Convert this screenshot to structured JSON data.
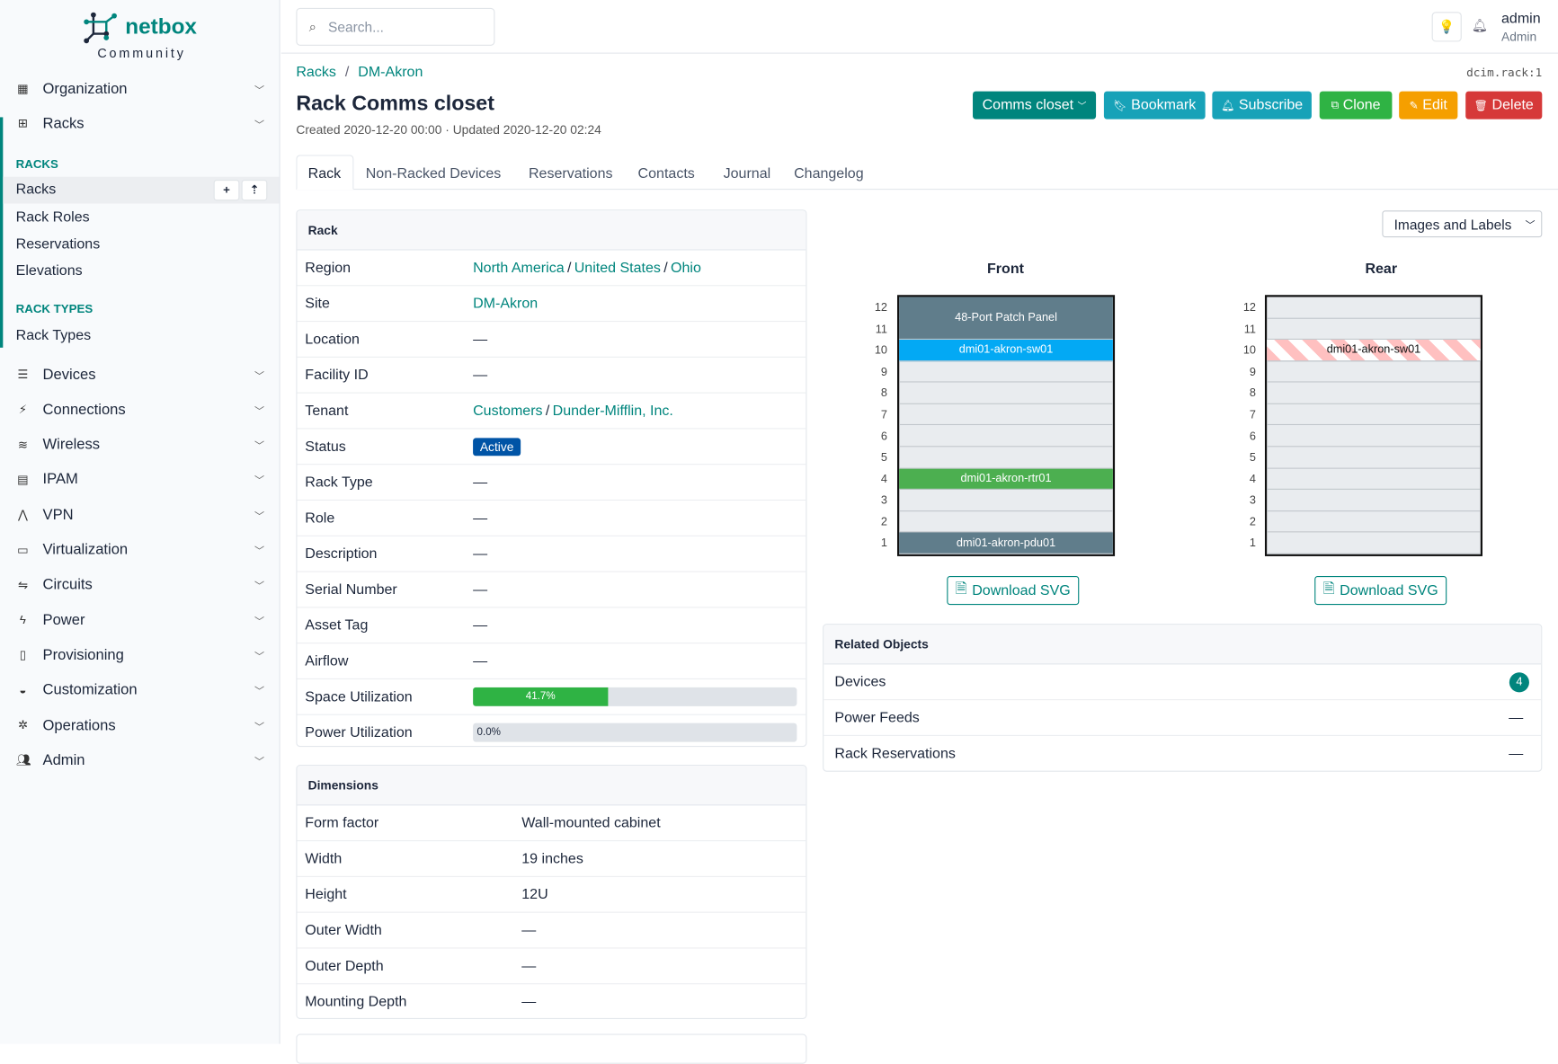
{
  "brand": {
    "name": "netbox",
    "edition": "Community",
    "color": "#00857d"
  },
  "sidebar": {
    "top_items": [
      {
        "label": "Organization",
        "icon": "building-icon"
      },
      {
        "label": "Racks",
        "icon": "rack-icon"
      }
    ],
    "racks_section": "RACKS",
    "racks_items": [
      "Racks",
      "Rack Roles",
      "Reservations",
      "Elevations"
    ],
    "rack_types_section": "RACK TYPES",
    "rack_types_items": [
      "Rack Types"
    ],
    "items": [
      {
        "label": "Devices",
        "icon": "server-icon"
      },
      {
        "label": "Connections",
        "icon": "plug-icon"
      },
      {
        "label": "Wireless",
        "icon": "wifi-icon"
      },
      {
        "label": "IPAM",
        "icon": "ipam-icon"
      },
      {
        "label": "VPN",
        "icon": "vpn-icon"
      },
      {
        "label": "Virtualization",
        "icon": "monitor-icon"
      },
      {
        "label": "Circuits",
        "icon": "circuit-icon"
      },
      {
        "label": "Power",
        "icon": "power-icon"
      },
      {
        "label": "Provisioning",
        "icon": "file-icon"
      },
      {
        "label": "Customization",
        "icon": "palette-icon"
      },
      {
        "label": "Operations",
        "icon": "cogs-icon"
      },
      {
        "label": "Admin",
        "icon": "users-icon"
      }
    ]
  },
  "header": {
    "search_placeholder": "Search...",
    "user": "admin",
    "role": "Admin"
  },
  "breadcrumb": [
    "Racks",
    "DM-Akron"
  ],
  "object_id": "dcim.rack:1",
  "title": "Rack Comms closet",
  "meta": "Created 2020-12-20 00:00 · Updated 2020-12-20 02:24",
  "actions": [
    {
      "label": "Comms closet",
      "color": "#00857d",
      "icon": "chevron-down-icon"
    },
    {
      "label": "Bookmark",
      "color": "#17a2b8",
      "icon": "bookmark-icon"
    },
    {
      "label": "Subscribe",
      "color": "#17a2b8",
      "icon": "bell-icon"
    },
    {
      "label": "Clone",
      "color": "#2fb344",
      "icon": "copy-icon"
    },
    {
      "label": "Edit",
      "color": "#f59f00",
      "icon": "pencil-icon"
    },
    {
      "label": "Delete",
      "color": "#d63939",
      "icon": "trash-icon"
    }
  ],
  "tabs": [
    "Rack",
    "Non-Racked Devices",
    "Reservations",
    "Contacts",
    "Journal",
    "Changelog"
  ],
  "rack_card": {
    "title": "Rack",
    "region": [
      "North America",
      "United States",
      "Ohio"
    ],
    "site": "DM-Akron",
    "tenant": [
      "Customers",
      "Dunder-Mifflin, Inc."
    ],
    "status": "Active",
    "status_color": "#0054a6",
    "labels": [
      "Region",
      "Site",
      "Location",
      "Facility ID",
      "Tenant",
      "Status",
      "Rack Type",
      "Role",
      "Description",
      "Serial Number",
      "Asset Tag",
      "Airflow",
      "Space Utilization",
      "Power Utilization"
    ],
    "dash": "—",
    "space_utilization": 41.7,
    "space_label": "41.7%",
    "power_utilization": 0.0,
    "power_label": "0.0%"
  },
  "dimensions": {
    "title": "Dimensions",
    "rows": [
      [
        "Form factor",
        "Wall-mounted cabinet"
      ],
      [
        "Width",
        "19 inches"
      ],
      [
        "Height",
        "12U"
      ],
      [
        "Outer Width",
        "—"
      ],
      [
        "Outer Depth",
        "—"
      ],
      [
        "Mounting Depth",
        "—"
      ]
    ]
  },
  "elevation": {
    "view_select": "Images and Labels",
    "front_label": "Front",
    "rear_label": "Rear",
    "units": 12,
    "front_devices": [
      {
        "name": "48-Port Patch Panel",
        "top": 12,
        "height": 2,
        "color": "#607d8b"
      },
      {
        "name": "dmi01-akron-sw01",
        "top": 10,
        "height": 1,
        "color": "#03a9f4"
      },
      {
        "name": "dmi01-akron-rtr01",
        "top": 4,
        "height": 1,
        "color": "#4caf50"
      },
      {
        "name": "dmi01-akron-pdu01",
        "top": 1,
        "height": 1,
        "color": "#607d8b"
      }
    ],
    "rear_devices": [
      {
        "name": "dmi01-akron-sw01",
        "top": 10,
        "height": 1
      }
    ],
    "download": "Download SVG"
  },
  "related": {
    "title": "Related Objects",
    "rows": [
      {
        "label": "Devices",
        "value": "4"
      },
      {
        "label": "Power Feeds",
        "value": "—"
      },
      {
        "label": "Rack Reservations",
        "value": "—"
      }
    ]
  }
}
